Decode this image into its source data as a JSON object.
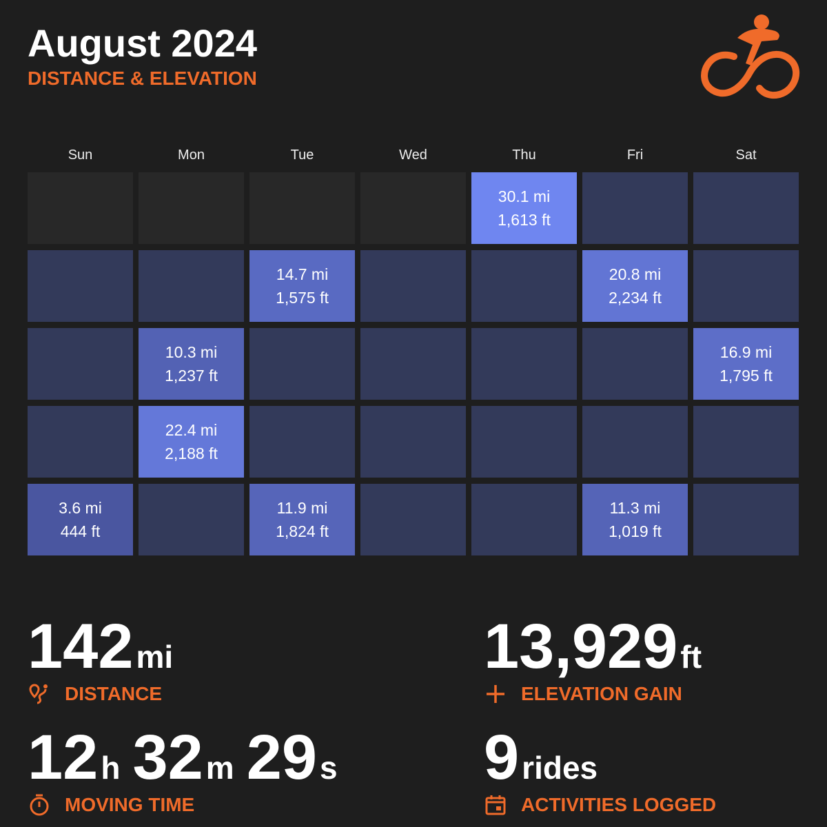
{
  "header": {
    "title": "August 2024",
    "subtitle": "DISTANCE & ELEVATION",
    "logo_icon": "cyclist-icon"
  },
  "colors": {
    "accent": "#f06b2a",
    "empty": "#282828",
    "no_ride": "#333a5a",
    "ride_low": "#4a56a0",
    "ride_high": "#6f86f0"
  },
  "weekdays": [
    "Sun",
    "Mon",
    "Tue",
    "Wed",
    "Thu",
    "Fri",
    "Sat"
  ],
  "cells": [
    {
      "inMonth": false
    },
    {
      "inMonth": false
    },
    {
      "inMonth": false
    },
    {
      "inMonth": false
    },
    {
      "inMonth": true,
      "dist": "30.1 mi",
      "elev": "1,613 ft",
      "miles": 30.1
    },
    {
      "inMonth": true
    },
    {
      "inMonth": true
    },
    {
      "inMonth": true
    },
    {
      "inMonth": true
    },
    {
      "inMonth": true,
      "dist": "14.7 mi",
      "elev": "1,575 ft",
      "miles": 14.7
    },
    {
      "inMonth": true
    },
    {
      "inMonth": true
    },
    {
      "inMonth": true,
      "dist": "20.8 mi",
      "elev": "2,234 ft",
      "miles": 20.8
    },
    {
      "inMonth": true
    },
    {
      "inMonth": true
    },
    {
      "inMonth": true,
      "dist": "10.3 mi",
      "elev": "1,237 ft",
      "miles": 10.3
    },
    {
      "inMonth": true
    },
    {
      "inMonth": true
    },
    {
      "inMonth": true
    },
    {
      "inMonth": true
    },
    {
      "inMonth": true,
      "dist": "16.9 mi",
      "elev": "1,795 ft",
      "miles": 16.9
    },
    {
      "inMonth": true
    },
    {
      "inMonth": true,
      "dist": "22.4 mi",
      "elev": "2,188 ft",
      "miles": 22.4
    },
    {
      "inMonth": true
    },
    {
      "inMonth": true
    },
    {
      "inMonth": true
    },
    {
      "inMonth": true
    },
    {
      "inMonth": true
    },
    {
      "inMonth": true,
      "dist": "3.6 mi",
      "elev": "444 ft",
      "miles": 3.6
    },
    {
      "inMonth": true
    },
    {
      "inMonth": true,
      "dist": "11.9 mi",
      "elev": "1,824 ft",
      "miles": 11.9
    },
    {
      "inMonth": true
    },
    {
      "inMonth": true
    },
    {
      "inMonth": true,
      "dist": "11.3 mi",
      "elev": "1,019 ft",
      "miles": 11.3
    },
    {
      "inMonth": true
    }
  ],
  "stats": {
    "distance": {
      "value": "142",
      "unit": "mi",
      "label": "DISTANCE",
      "icon": "route-icon"
    },
    "elevation": {
      "value": "13,929",
      "unit": "ft",
      "label": "ELEVATION GAIN",
      "icon": "plus-icon"
    },
    "time": {
      "h": "12",
      "h_unit": "h",
      "m": "32",
      "m_unit": "m",
      "s": "29",
      "s_unit": "s",
      "label": "MOVING TIME",
      "icon": "stopwatch-icon"
    },
    "rides": {
      "value": "9",
      "unit": "rides",
      "label": "ACTIVITIES LOGGED",
      "icon": "calendar-icon"
    }
  }
}
